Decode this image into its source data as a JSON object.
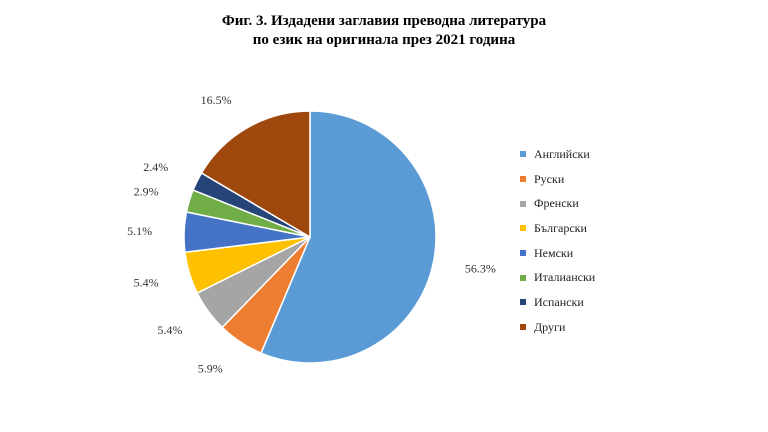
{
  "chart_data": {
    "type": "pie",
    "title_line1": "Фиг. 3. Издадени заглавия преводна литература",
    "title_line2": "по език на оригинала през 2021 година",
    "slices": [
      {
        "label": "Английски",
        "value": 56.3,
        "display": "56.3%",
        "color": "#5b9bd5"
      },
      {
        "label": "Руски",
        "value": 5.9,
        "display": "5.9%",
        "color": "#ed7d31"
      },
      {
        "label": "Френски",
        "value": 5.4,
        "display": "5.4%",
        "color": "#a5a5a5"
      },
      {
        "label": "Български",
        "value": 5.4,
        "display": "5.4%",
        "color": "#ffc000"
      },
      {
        "label": "Немски",
        "value": 5.1,
        "display": "5.1%",
        "color": "#4472c4"
      },
      {
        "label": "Италиански",
        "value": 2.9,
        "display": "2.9%",
        "color": "#70ad47"
      },
      {
        "label": "Испански",
        "value": 2.4,
        "display": "2.4%",
        "color": "#264478"
      },
      {
        "label": "Други",
        "value": 16.5,
        "display": "16.5%",
        "color": "#9e480e"
      }
    ],
    "start": "12 o'clock",
    "direction": "clockwise",
    "legend_position": "right"
  }
}
